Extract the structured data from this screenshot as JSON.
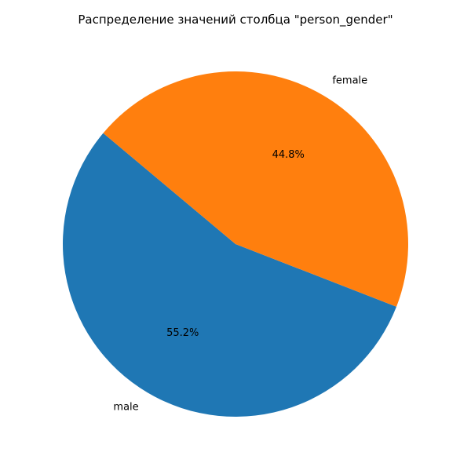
{
  "chart_data": {
    "type": "pie",
    "title": "Распределение значений столбца \"person_gender\"",
    "labels": [
      "male",
      "female"
    ],
    "values": [
      55.2,
      44.8
    ],
    "autopct": [
      "55.2%",
      "44.8%"
    ],
    "colors": [
      "#1f77b4",
      "#ff7f0e"
    ],
    "start_angle_deg": 140,
    "direction": "counterclockwise",
    "legend": "none"
  }
}
